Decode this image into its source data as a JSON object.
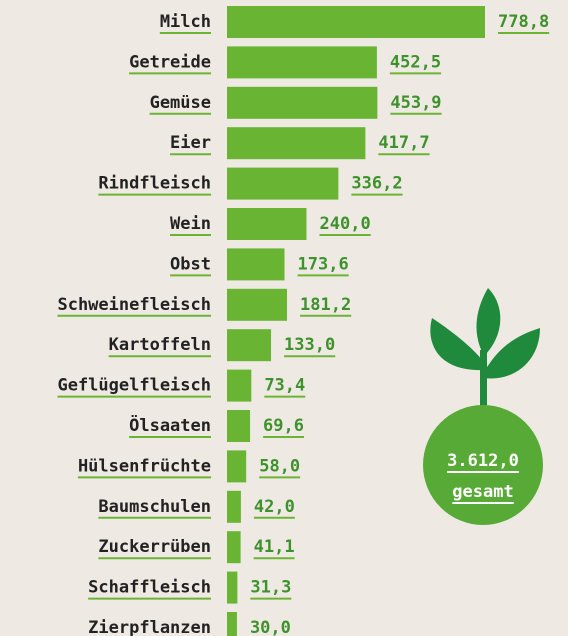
{
  "chart_data": {
    "type": "bar",
    "orientation": "horizontal",
    "categories": [
      "Milch",
      "Getreide",
      "Gemüse",
      "Eier",
      "Rindfleisch",
      "Wein",
      "Obst",
      "Schweinefleisch",
      "Kartoffeln",
      "Geflügelfleisch",
      "Ölsaaten",
      "Hülsenfrüchte",
      "Baumschulen",
      "Zuckerrüben",
      "Schaffleisch",
      "Zierpflanzen"
    ],
    "values": [
      778.8,
      452.5,
      453.9,
      417.7,
      336.2,
      240.0,
      173.6,
      181.2,
      133.0,
      73.4,
      69.6,
      58.0,
      42.0,
      41.1,
      31.3,
      30.0
    ],
    "value_labels": [
      "778,8",
      "452,5",
      "453,9",
      "417,7",
      "336,2",
      "240,0",
      "173,6",
      "181,2",
      "133,0",
      "73,4",
      "69,6",
      "58,0",
      "42,0",
      "41,1",
      "31,3",
      "30,0"
    ],
    "color": "#6ab434",
    "annotations": [
      "3.612,0",
      "gesamt"
    ]
  }
}
